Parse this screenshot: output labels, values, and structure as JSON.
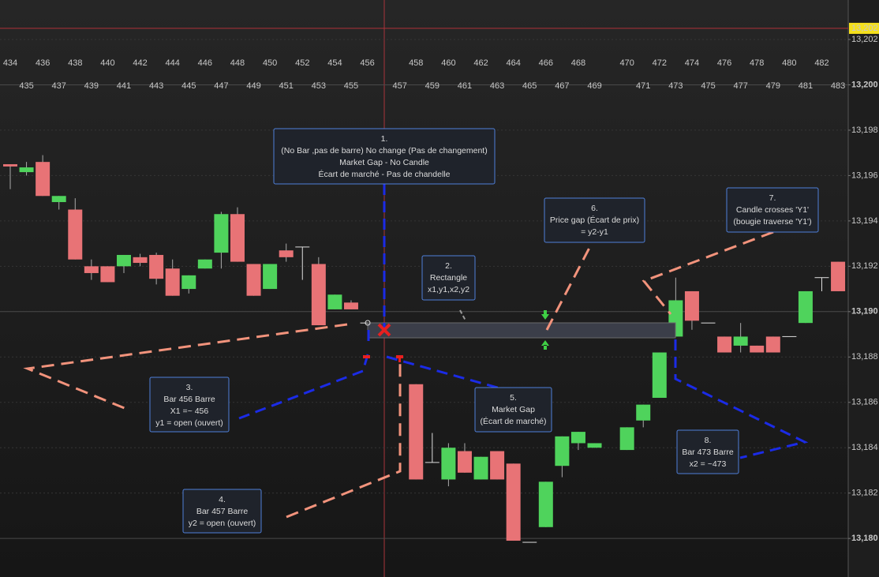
{
  "chart_data": {
    "type": "candlestick",
    "categories": [
      434,
      435,
      436,
      437,
      438,
      439,
      440,
      441,
      442,
      443,
      444,
      445,
      446,
      447,
      448,
      449,
      450,
      451,
      452,
      453,
      454,
      455,
      456,
      null,
      457,
      458,
      459,
      460,
      461,
      462,
      463,
      464,
      465,
      466,
      467,
      468,
      469,
      null,
      470,
      471,
      472,
      473,
      474,
      475,
      476,
      477,
      478,
      479,
      480,
      481,
      482,
      483
    ],
    "open": [
      13196.5,
      13196.15,
      13196.6,
      13194.83,
      13194.5,
      13192.0,
      13192.0,
      13192.0,
      13192.4,
      13192.5,
      13191.9,
      13191.0,
      13191.9,
      13192.6,
      13194.3,
      13192.1,
      13191.0,
      13192.7,
      13192.85,
      13192.1,
      13190.1,
      13190.4,
      13189.5,
      null,
      13188.85,
      13186.8,
      13183.35,
      13182.6,
      13183.85,
      13182.6,
      13183.85,
      13183.3,
      13179.83,
      13180.5,
      13183.2,
      13184.2,
      13184.0,
      null,
      13183.9,
      13185.2,
      13186.2,
      13188.9,
      13190.9,
      13189.5,
      13188.9,
      13188.5,
      13188.5,
      13188.9,
      13188.9,
      13189.5,
      13191.5,
      13192.2
    ],
    "high": [
      13196.5,
      13196.6,
      13196.9,
      13195.1,
      13195.0,
      13192.3,
      13192.0,
      13192.5,
      13192.55,
      13192.6,
      13192.3,
      13191.6,
      13192.3,
      13194.4,
      13194.6,
      13192.1,
      13192.1,
      13193.0,
      13192.85,
      13192.4,
      13190.75,
      13190.5,
      13189.5,
      null,
      13188.85,
      13186.8,
      13184.65,
      13184.2,
      13184.2,
      13183.6,
      13183.85,
      13183.3,
      13179.83,
      13182.5,
      13184.5,
      13184.7,
      13184.2,
      null,
      13184.9,
      13185.9,
      13188.2,
      13191.5,
      13190.9,
      13189.5,
      13188.9,
      13189.5,
      13188.5,
      13188.9,
      13188.9,
      13190.9,
      13191.5,
      13192.2
    ],
    "low": [
      13195.4,
      13196.0,
      13195.1,
      13194.5,
      13192.3,
      13191.4,
      13191.3,
      13191.7,
      13192.0,
      13191.2,
      13190.7,
      13190.8,
      13191.9,
      13191.9,
      13192.2,
      13190.7,
      13191.0,
      13192.2,
      13191.4,
      13189.4,
      13190.1,
      13190.1,
      13189.5,
      null,
      13188.85,
      13182.6,
      13183.35,
      13182.3,
      13182.9,
      13182.6,
      13182.6,
      13179.9,
      13179.83,
      13180.5,
      13182.7,
      13183.9,
      13184.0,
      null,
      13183.9,
      13184.9,
      13186.2,
      13188.9,
      13189.2,
      13189.5,
      13188.2,
      13188.2,
      13188.2,
      13188.2,
      13188.9,
      13189.5,
      13190.9,
      13190.9
    ],
    "close": [
      13196.4,
      13196.36,
      13195.1,
      13195.1,
      13192.3,
      13191.7,
      13191.3,
      13192.5,
      13192.15,
      13191.45,
      13190.7,
      13191.6,
      13192.3,
      13194.3,
      13192.2,
      13190.7,
      13192.1,
      13192.4,
      13192.85,
      13189.4,
      13190.75,
      13190.1,
      13189.5,
      null,
      13188.85,
      13182.6,
      13183.35,
      13184.0,
      13182.9,
      13183.6,
      13182.6,
      13179.9,
      13179.83,
      13182.5,
      13184.5,
      13184.7,
      13184.2,
      null,
      13184.9,
      13185.9,
      13188.2,
      13190.5,
      13189.6,
      13189.5,
      13188.2,
      13188.9,
      13188.2,
      13188.2,
      13188.9,
      13190.9,
      13191.5,
      13190.9
    ],
    "up_color": "#4fd35c",
    "down_color": "#e87376",
    "ylim": [
      13178.3,
      13203.74
    ],
    "yticks": [
      {
        "value": 13180,
        "label": "13,180"
      },
      {
        "value": 13182,
        "label": "13,182"
      },
      {
        "value": 13184,
        "label": "13,184"
      },
      {
        "value": 13186,
        "label": "13,186"
      },
      {
        "value": 13188,
        "label": "13,188"
      },
      {
        "value": 13190,
        "label": "13,190"
      },
      {
        "value": 13192,
        "label": "13,192"
      },
      {
        "value": 13194,
        "label": "13,194"
      },
      {
        "value": 13196,
        "label": "13,196"
      },
      {
        "value": 13198,
        "label": "13,198"
      },
      {
        "value": 13200,
        "label": "13,200"
      },
      {
        "value": 13202,
        "label": "13,202"
      }
    ],
    "last_price": {
      "value": 13202.49,
      "label": "13,202"
    },
    "grid": true,
    "annotations": [
      {
        "lines": [
          "1.",
          "(No Bar ,pas de barre) No change (Pas de changement)",
          "Market Gap - No Candle",
          "Écart de marché - Pas de chandelle"
        ]
      },
      {
        "lines": [
          "2.",
          "Rectangle",
          "x1,y1,x2,y2"
        ]
      },
      {
        "lines": [
          "3.",
          "Bar 456 Barre",
          "X1  =~ 456",
          "y1 = open (ouvert)"
        ]
      },
      {
        "lines": [
          "4.",
          "Bar 457 Barre",
          "y2 = open (ouvert)"
        ]
      },
      {
        "lines": [
          "5.",
          "Market Gap",
          "(Écart de marché)"
        ]
      },
      {
        "lines": [
          "6.",
          "Price gap (Écart de prix)",
          "= y2-y1"
        ]
      },
      {
        "lines": [
          "7.",
          "Candle crosses 'Y1'",
          "(bougie traverse 'Y1')"
        ]
      },
      {
        "lines": [
          "8.",
          "Bar 473 Barre",
          "x2 = ~473"
        ]
      }
    ]
  }
}
